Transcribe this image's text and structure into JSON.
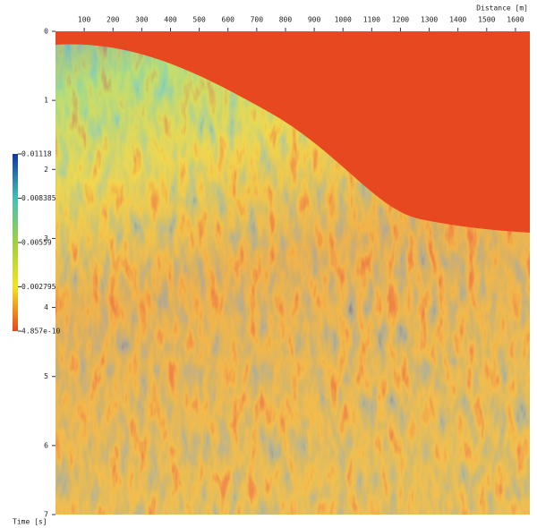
{
  "chart_data": {
    "type": "heatmap",
    "x_label": "Distance [m]",
    "y_label": "Time [s]",
    "xlim": [
      0,
      1650
    ],
    "xticks": [
      100,
      200,
      300,
      400,
      500,
      600,
      700,
      800,
      900,
      1000,
      1100,
      1200,
      1300,
      1400,
      1500,
      1600
    ],
    "ylim": [
      0,
      7
    ],
    "yticks": [
      0,
      1,
      2,
      3,
      4,
      5,
      6,
      7
    ],
    "colorbar": {
      "clim": [
        4.857e-10,
        0.01118
      ],
      "ticks": [
        0.01118,
        0.008385,
        0.00559,
        0.002795,
        4.857e-10
      ],
      "colors": [
        "#e8451f",
        "#f3e321",
        "#9fd043",
        "#45c0b6",
        "#1133a0"
      ]
    }
  }
}
